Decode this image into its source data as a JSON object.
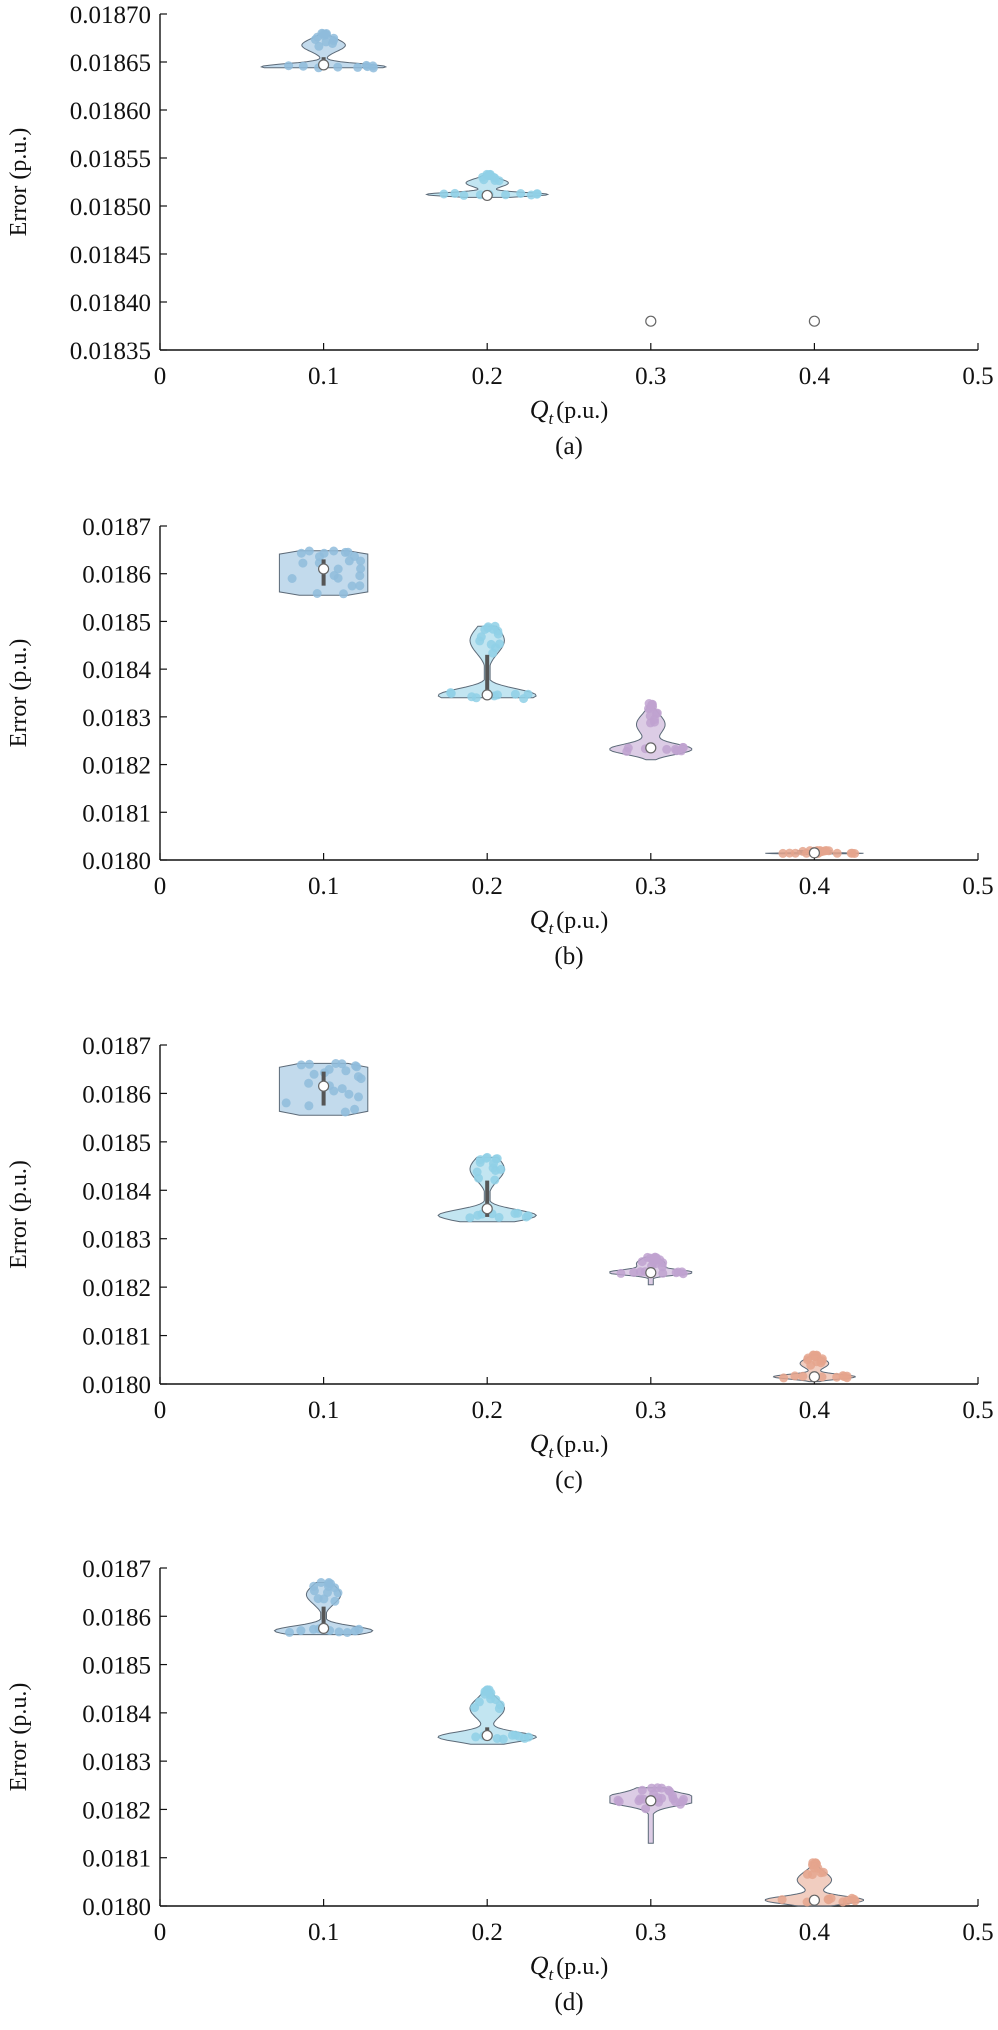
{
  "panels": [
    {
      "caption": "(a)",
      "ylabel": "Error (p.u.)",
      "xlabel_symbol": "Q",
      "xlabel_sub": "t",
      "xlabel_unit": "(p.u.)",
      "yticks": [
        "0.01835",
        "0.01840",
        "0.01845",
        "0.01850",
        "0.01855",
        "0.01860",
        "0.01865",
        "0.01870"
      ],
      "xticks": [
        "0",
        "0.1",
        "0.2",
        "0.3",
        "0.4",
        "0.5"
      ]
    },
    {
      "caption": "(b)",
      "ylabel": "Error (p.u.)",
      "xlabel_symbol": "Q",
      "xlabel_sub": "t",
      "xlabel_unit": "(p.u.)",
      "yticks": [
        "0.0180",
        "0.0181",
        "0.0182",
        "0.0183",
        "0.0184",
        "0.0185",
        "0.0186",
        "0.0187"
      ],
      "xticks": [
        "0",
        "0.1",
        "0.2",
        "0.3",
        "0.4",
        "0.5"
      ]
    },
    {
      "caption": "(c)",
      "ylabel": "Error (p.u.)",
      "xlabel_symbol": "Q",
      "xlabel_sub": "t",
      "xlabel_unit": "(p.u.)",
      "yticks": [
        "0.0180",
        "0.0181",
        "0.0182",
        "0.0183",
        "0.0184",
        "0.0185",
        "0.0186",
        "0.0187"
      ],
      "xticks": [
        "0",
        "0.1",
        "0.2",
        "0.3",
        "0.4",
        "0.5"
      ]
    },
    {
      "caption": "(d)",
      "ylabel": "Error (p.u.)",
      "xlabel_symbol": "Q",
      "xlabel_sub": "t",
      "xlabel_unit": "(p.u.)",
      "yticks": [
        "0.0180",
        "0.0181",
        "0.0182",
        "0.0183",
        "0.0184",
        "0.0185",
        "0.0186",
        "0.0187"
      ],
      "xticks": [
        "0",
        "0.1",
        "0.2",
        "0.3",
        "0.4",
        "0.5"
      ]
    }
  ],
  "chart_data": [
    {
      "type": "violin",
      "xlabel": "Qt (p.u.)",
      "ylabel": "Error (p.u.)",
      "xlim": [
        0,
        0.5
      ],
      "ylim": [
        0.01835,
        0.0187
      ],
      "grid": false,
      "colors": [
        "#8fbcdc",
        "#8fd0e6",
        "#bfa2d0",
        "#e5a48d"
      ],
      "violins": [
        {
          "x": 0.1,
          "median": 0.018647,
          "q1": 0.018645,
          "q3": 0.018655,
          "min": 0.018644,
          "max": 0.01868,
          "mode": 0.018645,
          "halfwidth": 0.038
        },
        {
          "x": 0.2,
          "median": 0.018511,
          "q1": 0.01851,
          "q3": 0.018515,
          "min": 0.018509,
          "max": 0.018533,
          "mode": 0.018512,
          "halfwidth": 0.037
        },
        {
          "x": 0.3,
          "median": 0.01838,
          "q1": 0.01838,
          "q3": 0.01838,
          "min": 0.01838,
          "max": 0.01838,
          "mode": 0.01838,
          "halfwidth": 0
        },
        {
          "x": 0.4,
          "median": 0.01838,
          "q1": 0.01838,
          "q3": 0.01838,
          "min": 0.01838,
          "max": 0.01838,
          "mode": 0.01838,
          "halfwidth": 0
        }
      ]
    },
    {
      "type": "violin",
      "xlabel": "Qt (p.u.)",
      "ylabel": "Error (p.u.)",
      "xlim": [
        0,
        0.5
      ],
      "ylim": [
        0.018,
        0.0187
      ],
      "grid": false,
      "colors": [
        "#8fbcdc",
        "#8fd0e6",
        "#bfa2d0",
        "#e5a48d"
      ],
      "violins": [
        {
          "x": 0.1,
          "median": 0.01861,
          "q1": 0.018575,
          "q3": 0.01863,
          "min": 0.018555,
          "max": 0.018648,
          "mode": 0.0186,
          "halfwidth": 0.03,
          "flat": true
        },
        {
          "x": 0.2,
          "median": 0.018346,
          "q1": 0.018346,
          "q3": 0.01843,
          "min": 0.01834,
          "max": 0.01849,
          "mode": 0.018345,
          "halfwidth": 0.03
        },
        {
          "x": 0.3,
          "median": 0.018235,
          "q1": 0.01823,
          "q3": 0.01824,
          "min": 0.01821,
          "max": 0.018328,
          "mode": 0.018232,
          "halfwidth": 0.025
        },
        {
          "x": 0.4,
          "median": 0.018015,
          "q1": 0.018012,
          "q3": 0.018018,
          "min": 0.01801,
          "max": 0.01802,
          "mode": 0.018014,
          "halfwidth": 0.03
        }
      ]
    },
    {
      "type": "violin",
      "xlabel": "Qt (p.u.)",
      "ylabel": "Error (p.u.)",
      "xlim": [
        0,
        0.5
      ],
      "ylim": [
        0.018,
        0.0187
      ],
      "grid": false,
      "colors": [
        "#8fbcdc",
        "#8fd0e6",
        "#bfa2d0",
        "#e5a48d"
      ],
      "violins": [
        {
          "x": 0.1,
          "median": 0.018615,
          "q1": 0.018575,
          "q3": 0.018645,
          "min": 0.018555,
          "max": 0.018662,
          "mode": 0.018605,
          "halfwidth": 0.03,
          "flat": true
        },
        {
          "x": 0.2,
          "median": 0.018362,
          "q1": 0.018345,
          "q3": 0.01842,
          "min": 0.018335,
          "max": 0.018468,
          "mode": 0.018348,
          "halfwidth": 0.03
        },
        {
          "x": 0.3,
          "median": 0.01823,
          "q1": 0.018225,
          "q3": 0.018235,
          "min": 0.018205,
          "max": 0.018262,
          "mode": 0.01823,
          "halfwidth": 0.025
        },
        {
          "x": 0.4,
          "median": 0.018015,
          "q1": 0.01801,
          "q3": 0.018025,
          "min": 0.018005,
          "max": 0.01806,
          "mode": 0.018015,
          "halfwidth": 0.025
        }
      ]
    },
    {
      "type": "violin",
      "xlabel": "Qt (p.u.)",
      "ylabel": "Error (p.u.)",
      "xlim": [
        0,
        0.5
      ],
      "ylim": [
        0.018,
        0.0187
      ],
      "grid": false,
      "colors": [
        "#8fbcdc",
        "#8fd0e6",
        "#bfa2d0",
        "#e5a48d"
      ],
      "violins": [
        {
          "x": 0.1,
          "median": 0.018575,
          "q1": 0.018568,
          "q3": 0.01862,
          "min": 0.018562,
          "max": 0.01867,
          "mode": 0.01857,
          "halfwidth": 0.03
        },
        {
          "x": 0.2,
          "median": 0.018353,
          "q1": 0.018345,
          "q3": 0.01837,
          "min": 0.018335,
          "max": 0.018448,
          "mode": 0.01835,
          "halfwidth": 0.03
        },
        {
          "x": 0.3,
          "median": 0.018218,
          "q1": 0.018215,
          "q3": 0.01822,
          "min": 0.01813,
          "max": 0.018245,
          "mode": 0.01822,
          "halfwidth": 0.025
        },
        {
          "x": 0.4,
          "median": 0.018012,
          "q1": 0.018008,
          "q3": 0.018018,
          "min": 0.018,
          "max": 0.01809,
          "mode": 0.018012,
          "halfwidth": 0.03
        }
      ]
    }
  ]
}
